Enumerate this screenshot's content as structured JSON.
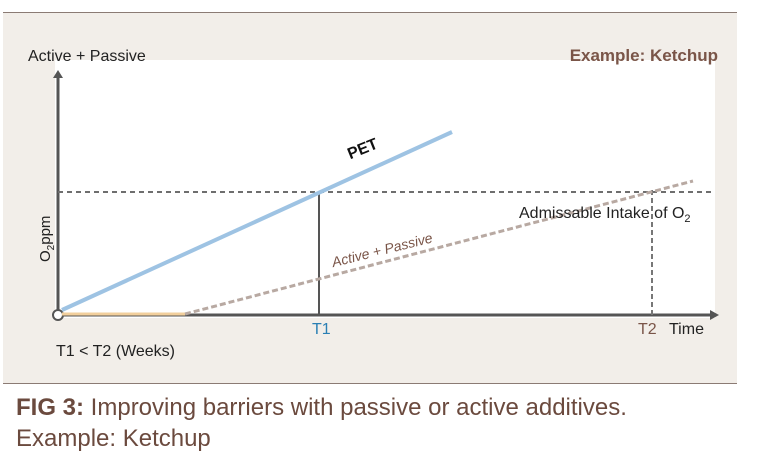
{
  "chart_data": {
    "type": "line",
    "title": "Example: Ketchup",
    "y_axis_title": "Active + Passive",
    "ylabel": "O2ppm",
    "xlabel": "Time",
    "x_ticks": [
      "T1",
      "T2"
    ],
    "threshold": {
      "label": "Admissable Intake of O2"
    },
    "series": [
      {
        "name": "PET",
        "color": "#9ec3e3"
      },
      {
        "name": "Active + Passive",
        "color": "#b8a9a2",
        "initial_flat_color": "#f2cf9c"
      }
    ],
    "footnote": "T1 < T2 (Weeks)",
    "grid": false
  },
  "text": {
    "y_axis_title": "Active + Passive",
    "example": "Example: Ketchup",
    "ylabel_main": "O",
    "ylabel_sub": "2",
    "ylabel_unit": "ppm",
    "threshold_main": "Admissable Intake of O",
    "threshold_sub": "2",
    "t1": "T1",
    "t2": "T2",
    "time": "Time",
    "footnote": "T1 < T2 (Weeks)",
    "pet": "PET",
    "active_passive": "Active + Passive"
  },
  "caption": {
    "fig": "FIG 3:",
    "text": " Improving barriers with passive or active additives. Example: Ketchup"
  },
  "colors": {
    "panel": "#f2eee9",
    "accent_brown": "#7a5548",
    "t1_blue": "#2a7fb4",
    "axis": "#555555",
    "dashed": "#6e6e6e"
  }
}
